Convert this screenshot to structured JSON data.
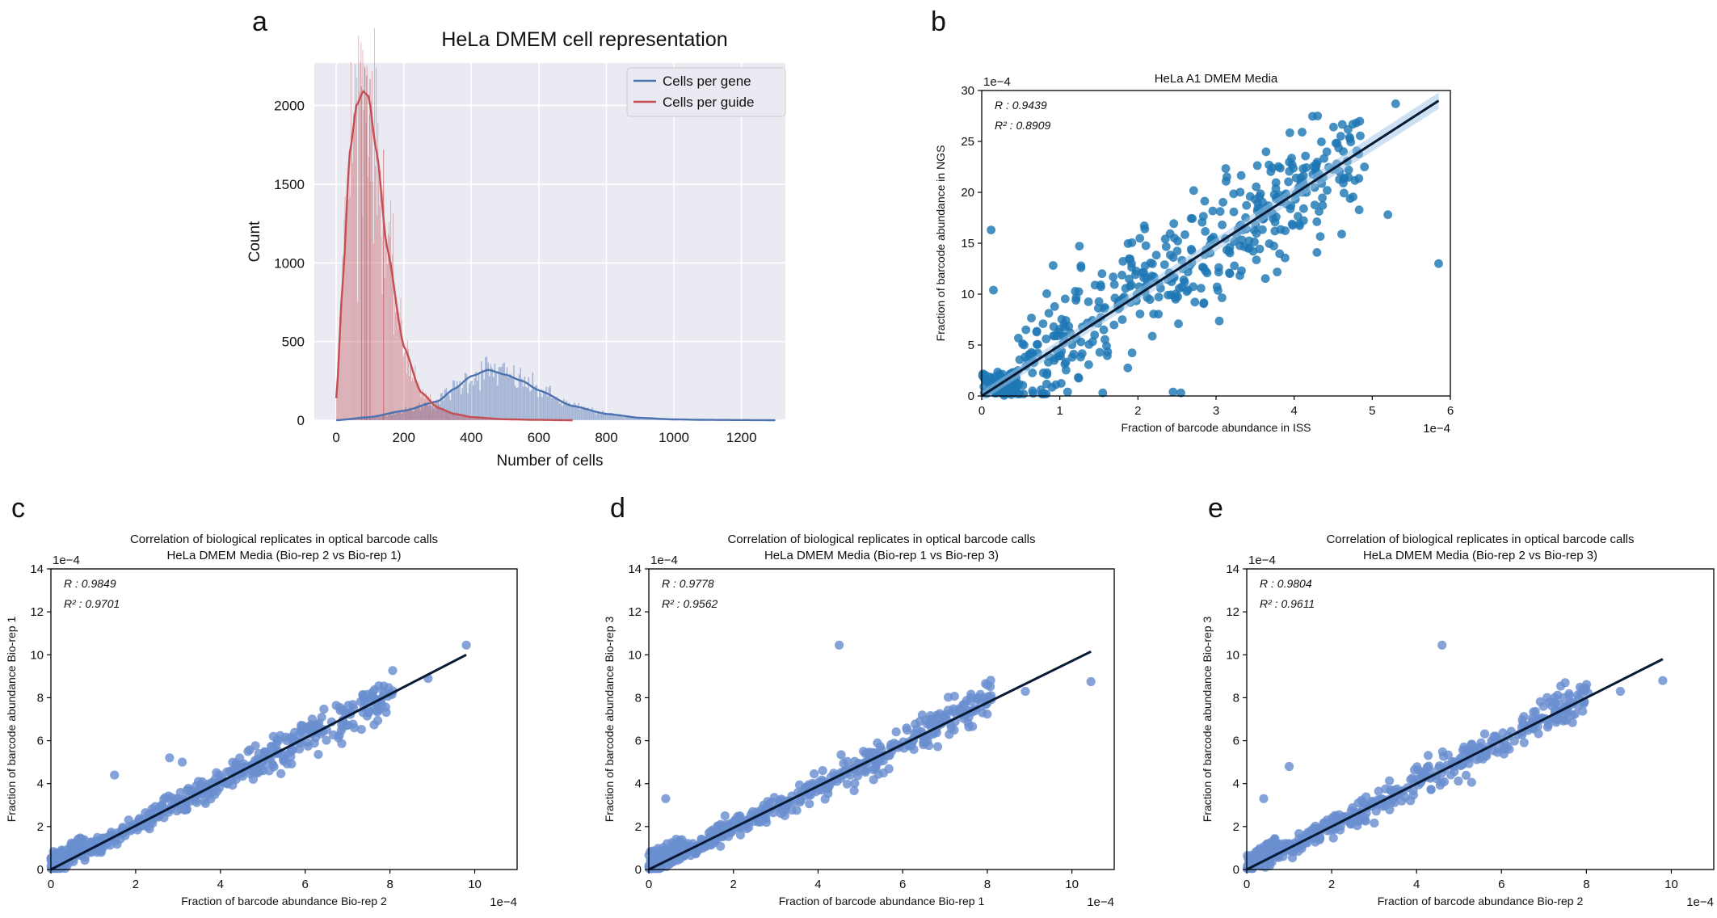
{
  "chart_data": [
    {
      "panel": "a",
      "type": "histogram",
      "title": "HeLa DMEM cell representation",
      "xlabel": "Number of cells",
      "ylabel": "Count",
      "xlim": [
        -65,
        1330
      ],
      "ylim": [
        0,
        2270
      ],
      "xticks": [
        0,
        200,
        400,
        600,
        800,
        1000,
        1200
      ],
      "yticks": [
        0,
        500,
        1000,
        1500,
        2000
      ],
      "grid": true,
      "background": "#eaeaf2",
      "legend": {
        "placement": "top-right",
        "entries": [
          "Cells per gene",
          "Cells per guide"
        ]
      },
      "series": [
        {
          "name": "Cells per gene",
          "color": "#4c72b0",
          "kde_x": [
            0,
            100,
            200,
            300,
            350,
            400,
            450,
            500,
            550,
            600,
            700,
            800,
            900,
            1000,
            1100,
            1200,
            1300
          ],
          "kde_y": [
            0,
            20,
            60,
            120,
            200,
            280,
            320,
            290,
            250,
            190,
            90,
            40,
            15,
            5,
            2,
            1,
            0
          ]
        },
        {
          "name": "Cells per guide",
          "color": "#c44e52",
          "kde_x": [
            0,
            20,
            40,
            60,
            80,
            95,
            120,
            150,
            200,
            250,
            300,
            350,
            400,
            500,
            600,
            700
          ],
          "kde_y": [
            140,
            900,
            1700,
            2000,
            2090,
            2060,
            1700,
            1100,
            470,
            180,
            80,
            40,
            20,
            6,
            2,
            0
          ]
        }
      ]
    },
    {
      "panel": "b",
      "type": "scatter",
      "title": "HeLa A1 DMEM Media",
      "xlabel": "Fraction of barcode abundance in ISS",
      "ylabel": "Fraction of barcode abundance in NGS",
      "x_scale_label": "1e−4",
      "y_scale_label": "1e−4",
      "xlim": [
        0,
        6
      ],
      "ylim": [
        0,
        30
      ],
      "xticks": [
        0,
        1,
        2,
        3,
        4,
        5,
        6
      ],
      "yticks": [
        0,
        5,
        10,
        15,
        20,
        25,
        30
      ],
      "stats": [
        "R : 0.9439",
        "R² : 0.8909"
      ],
      "fit": {
        "x0": 0,
        "y0": 0,
        "x1": 5.85,
        "y1": 29
      },
      "color": "#1f77b4",
      "points_note": "dense scatter (~600 barcodes)"
    },
    {
      "panel": "c",
      "type": "scatter",
      "title": "Correlation of biological replicates in optical barcode calls",
      "subtitle": "HeLa DMEM Media (Bio-rep 2 vs Bio-rep 1)",
      "xlabel": "Fraction of barcode abundance Bio-rep 2",
      "ylabel": "Fraction of barcode abundance Bio-rep 1",
      "x_scale_label": "1e−4",
      "y_scale_label": "1e−4",
      "xlim": [
        0,
        11
      ],
      "ylim": [
        0,
        14
      ],
      "xticks": [
        0,
        2,
        4,
        6,
        8,
        10
      ],
      "yticks": [
        0,
        2,
        4,
        6,
        8,
        10,
        12,
        14
      ],
      "stats": [
        "R : 0.9849",
        "R² : 0.9701"
      ],
      "fit": {
        "x0": 0,
        "y0": 0,
        "x1": 9.8,
        "y1": 10.0
      },
      "color": "#6a8fcf"
    },
    {
      "panel": "d",
      "type": "scatter",
      "title": "Correlation of biological replicates in optical barcode calls",
      "subtitle": "HeLa DMEM Media (Bio-rep 1 vs Bio-rep 3)",
      "xlabel": "Fraction of barcode abundance Bio-rep 1",
      "ylabel": "Fraction of barcode abundance Bio-rep 3",
      "x_scale_label": "1e−4",
      "y_scale_label": "1e−4",
      "xlim": [
        0,
        11
      ],
      "ylim": [
        0,
        14
      ],
      "xticks": [
        0,
        2,
        4,
        6,
        8,
        10
      ],
      "yticks": [
        0,
        2,
        4,
        6,
        8,
        10,
        12,
        14
      ],
      "stats": [
        "R : 0.9778",
        "R² : 0.9562"
      ],
      "fit": {
        "x0": 0,
        "y0": 0,
        "x1": 10.45,
        "y1": 10.15
      },
      "color": "#6a8fcf"
    },
    {
      "panel": "e",
      "type": "scatter",
      "title": "Correlation of biological replicates in optical barcode calls",
      "subtitle": "HeLa DMEM Media (Bio-rep 2 vs Bio-rep 3)",
      "xlabel": "Fraction of barcode abundance Bio-rep 2",
      "ylabel": "Fraction of barcode abundance Bio-rep 3",
      "x_scale_label": "1e−4",
      "y_scale_label": "1e−4",
      "xlim": [
        0,
        11
      ],
      "ylim": [
        0,
        14
      ],
      "xticks": [
        0,
        2,
        4,
        6,
        8,
        10
      ],
      "yticks": [
        0,
        2,
        4,
        6,
        8,
        10,
        12,
        14
      ],
      "stats": [
        "R : 0.9804",
        "R² : 0.9611"
      ],
      "fit": {
        "x0": 0,
        "y0": 0,
        "x1": 9.8,
        "y1": 9.8
      },
      "color": "#6a8fcf"
    }
  ]
}
